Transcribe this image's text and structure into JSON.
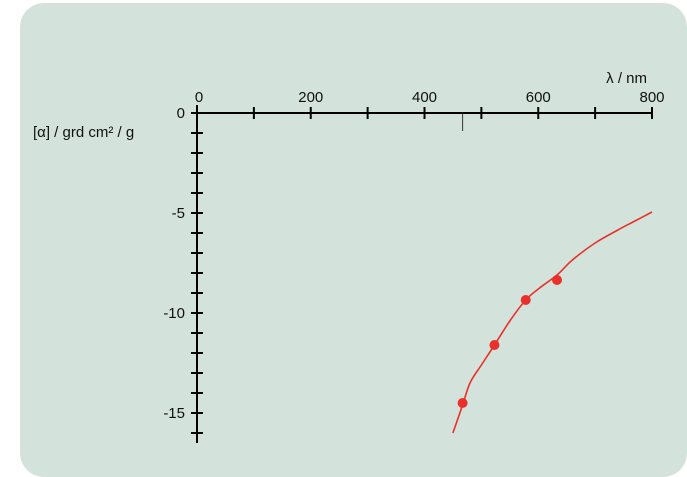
{
  "colors": {
    "background": "#d3e3dc",
    "curve": "#e8312a",
    "points": "#e8312a",
    "axis": "#000000"
  },
  "chart_data": {
    "type": "scatter",
    "title": "",
    "xlabel": "λ / nm",
    "ylabel": "[α] / grd cm² / g",
    "xlim": [
      0,
      800
    ],
    "ylim": [
      -16.5,
      0
    ],
    "x_ticks": [
      0,
      200,
      400,
      600,
      800
    ],
    "x_tick_labels": [
      "0",
      "200",
      "400",
      "600",
      "800"
    ],
    "x_minor_step": 100,
    "y_ticks": [
      0,
      -5,
      -10,
      -15
    ],
    "y_tick_labels": [
      "0",
      "-5",
      "-10",
      "-15"
    ],
    "y_minor_step": 1,
    "x_axis_position": "top",
    "grid": false,
    "marker_x": 467,
    "series": [
      {
        "kind": "points",
        "x": [
          467,
          523,
          578,
          633
        ],
        "y": [
          -14.5,
          -11.6,
          -9.35,
          -8.35
        ]
      },
      {
        "kind": "fit-curve",
        "x": [
          450,
          467,
          480,
          500,
          523,
          550,
          578,
          600,
          633,
          660,
          700,
          740,
          770,
          800
        ],
        "y": [
          -16.0,
          -14.6,
          -13.5,
          -12.6,
          -11.6,
          -10.4,
          -9.35,
          -8.8,
          -8.1,
          -7.35,
          -6.5,
          -5.85,
          -5.4,
          -4.95
        ]
      }
    ]
  }
}
